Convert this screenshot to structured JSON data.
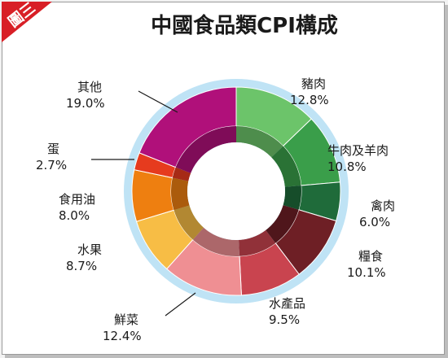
{
  "badge": {
    "text": "圖三",
    "color": "#d81f26"
  },
  "chart_data": {
    "type": "pie",
    "title": "中國食品類CPI構成",
    "slices": [
      {
        "name": "豬肉",
        "value": 12.8,
        "label": "12.8%",
        "color": "#6cc46a"
      },
      {
        "name": "牛肉及羊肉",
        "value": 10.8,
        "label": "10.8%",
        "color": "#3a9e4a"
      },
      {
        "name": "禽肉",
        "value": 6.0,
        "label": "6.0%",
        "color": "#1f6b3a"
      },
      {
        "name": "糧食",
        "value": 10.1,
        "label": "10.1%",
        "color": "#6e1f25"
      },
      {
        "name": "水產品",
        "value": 9.5,
        "label": "9.5%",
        "color": "#c9444f"
      },
      {
        "name": "鮮菜",
        "value": 12.4,
        "label": "12.4%",
        "color": "#ef8f93"
      },
      {
        "name": "水果",
        "value": 8.7,
        "label": "8.7%",
        "color": "#f7bd45"
      },
      {
        "name": "食用油",
        "value": 8.0,
        "label": "8.0%",
        "color": "#ee7f10"
      },
      {
        "name": "蛋",
        "value": 2.7,
        "label": "2.7%",
        "color": "#e63b1e"
      },
      {
        "name": "其他",
        "value": 19.0,
        "label": "19.0%",
        "color": "#b0107a"
      }
    ],
    "ring_color": "#bfe3f5"
  }
}
